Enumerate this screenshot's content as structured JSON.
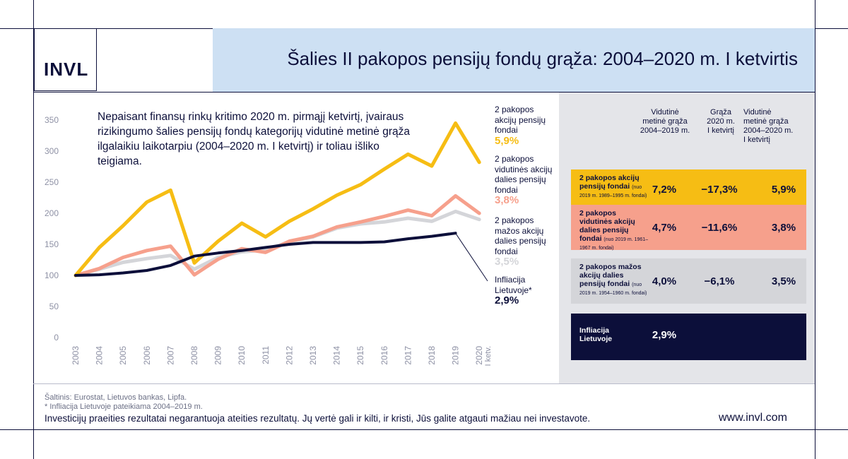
{
  "logo_text": "INVL",
  "title": "Šalies II pakopos pensijų fondų grąža: 2004–2020 m. I ketvirtis",
  "note": "Nepaisant finansų rinkų kritimo 2020 m. pirmąjį ketvirtį, įvairaus rizikingumo šalies pensijų fondų kategorijų vidutinė metinė grąža ilgalaikiu laikotarpiu (2004–2020 m. I ketvirtį) ir toliau išliko teigiama.",
  "series_labels": [
    {
      "name": "2 pakopos akcijų pensijų fondai",
      "lines": [
        "2 pakopos",
        "akcijų pensijų",
        "fondai"
      ],
      "pct": "5,9%"
    },
    {
      "name": "2 pakopos vidutinės akcijų dalies pensijų fondai",
      "lines": [
        "2 pakopos",
        "vidutinės akcijų",
        "dalies pensijų",
        "fondai"
      ],
      "pct": "3,8%"
    },
    {
      "name": "2 pakopos mažos akcijų dalies pensijų fondai",
      "lines": [
        "2 pakopos",
        "mažos akcijų",
        "dalies pensijų",
        "fondai"
      ],
      "pct": "3,5%"
    },
    {
      "name": "Infliacija Lietuvoje*",
      "lines": [
        "Infliacija",
        "Lietuvoje*"
      ],
      "pct": "2,9%"
    }
  ],
  "table": {
    "headers": [
      [
        "Vidutinė",
        "metinė grąža",
        "2004–2019 m."
      ],
      [
        "Grąža",
        "2020 m.",
        "I ketvirtį"
      ],
      [
        "Vidutinė",
        "metinė grąža",
        "2004–2020 m.",
        "I ketvirtį"
      ]
    ],
    "rows": [
      {
        "label": "2 pakopos akcijų pensijų fondai",
        "note": "(nuo 2019 m. 1989–1995 m. fondai)",
        "values": [
          "7,2%",
          "−17,3%",
          "5,9%"
        ]
      },
      {
        "label": "2 pakopos vidutinės akcijų dalies pensijų fondai",
        "note": "(nuo 2019 m. 1961–1967 m. fondai)",
        "values": [
          "4,7%",
          "−11,6%",
          "3,8%"
        ]
      },
      {
        "label": "2 pakopos mažos akcijų dalies pensijų fondai",
        "note": "(nuo 2019 m. 1954–1960 m. fondai)",
        "values": [
          "4,0%",
          "−6,1%",
          "3,5%"
        ]
      },
      {
        "label": "Infliacija Lietuvoje",
        "note": "",
        "values": [
          "2,9%",
          "",
          ""
        ]
      }
    ]
  },
  "colors": {
    "navy": "#0c0f3a",
    "yellow": "#f6bd14",
    "salmon": "#f6a08c",
    "grey": "#d4d5d9",
    "header_blue": "#cde0f3",
    "panel_grey": "#e4e5e9"
  },
  "source_lines": [
    "Šaltinis: Eurostat, Lietuvos bankas, Lipfa.",
    "* Infliacija Lietuvoje pateikiama 2004–2019 m."
  ],
  "disclaimer": "Investicijų praeities rezultatai negarantuoja ateities rezultatų. Jų vertė gali ir kilti, ir kristi, Jūs galite atgauti mažiau nei investavote.",
  "website": "www.invl.com",
  "chart_data": {
    "type": "line",
    "x": [
      "2003",
      "2004",
      "2005",
      "2006",
      "2007",
      "2008",
      "2009",
      "2010",
      "2011",
      "2012",
      "2013",
      "2014",
      "2015",
      "2016",
      "2017",
      "2018",
      "2019",
      "2020 I ketv."
    ],
    "ylim": [
      0,
      350
    ],
    "yticks": [
      0,
      50,
      100,
      150,
      200,
      250,
      300,
      350
    ],
    "grid": false,
    "series": [
      {
        "name": "2 pakopos akcijų pensijų fondai",
        "color": "#f6bd14",
        "values": [
          100,
          145,
          180,
          218,
          237,
          120,
          155,
          184,
          162,
          187,
          207,
          229,
          246,
          271,
          295,
          276,
          345,
          282
        ]
      },
      {
        "name": "2 pakopos vidutinės akcijų dalies pensijų fondai",
        "color": "#f6a08c",
        "values": [
          100,
          111,
          129,
          140,
          147,
          101,
          126,
          143,
          137,
          155,
          163,
          178,
          186,
          195,
          205,
          196,
          228,
          200
        ]
      },
      {
        "name": "2 pakopos mažos akcijų dalies pensijų fondai",
        "color": "#d4d5d9",
        "values": [
          100,
          110,
          121,
          127,
          132,
          110,
          129,
          138,
          141,
          154,
          162,
          176,
          183,
          186,
          192,
          187,
          203,
          190
        ]
      },
      {
        "name": "Infliacija Lietuvoje*",
        "color": "#0c0f3a",
        "values": [
          100,
          101,
          104,
          108,
          116,
          131,
          136,
          140,
          145,
          150,
          153,
          153,
          153,
          154,
          159,
          163,
          168,
          null
        ]
      }
    ]
  }
}
